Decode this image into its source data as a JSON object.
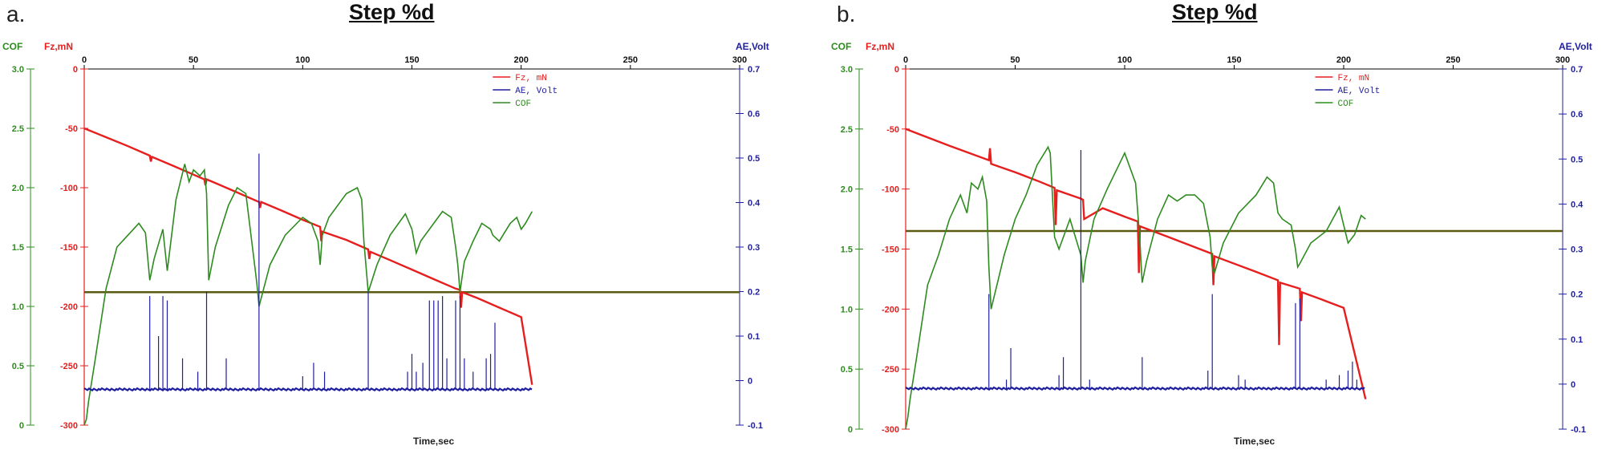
{
  "colors": {
    "fz": "#e61e1e",
    "ae": "#1f1f9e",
    "cof": "#2e8b1f",
    "hline": "#5a5a10"
  },
  "chart_data": [
    {
      "panel_label": "a.",
      "title": "Step %d",
      "type": "line",
      "xlabel": "Time,sec",
      "x_axis": {
        "range": [
          0,
          300
        ],
        "ticks": [
          0,
          50,
          100,
          150,
          200,
          250,
          300
        ]
      },
      "cof_axis": {
        "label": "COF",
        "range": [
          0,
          3.0
        ],
        "ticks": [
          0,
          0.5,
          1.0,
          1.5,
          2.0,
          2.5,
          3.0
        ],
        "tick_labels": [
          "0",
          "0.5",
          "1.0",
          "1.5",
          "2.0",
          "2.5",
          "3.0"
        ]
      },
      "fz_axis": {
        "label": "Fz,mN",
        "range": [
          -300,
          0
        ],
        "ticks": [
          -300,
          -250,
          -200,
          -150,
          -100,
          -50,
          0
        ],
        "tick_labels": [
          "-300",
          "-250",
          "-200",
          "-150",
          "-100",
          "-50",
          "0"
        ]
      },
      "ae_axis": {
        "label": "AE,Volt",
        "range": [
          -0.1,
          0.7
        ],
        "ticks": [
          -0.1,
          0,
          0.1,
          0.2,
          0.3,
          0.4,
          0.5,
          0.6,
          0.7
        ],
        "tick_labels": [
          "-0.1",
          "0",
          "0.1",
          "0.2",
          "0.3",
          "0.4",
          "0.5",
          "0.6",
          "0.7"
        ]
      },
      "legend": [
        "Fz, mN",
        "AE, Volt",
        "COF"
      ],
      "hline_cof": 1.12,
      "series": [
        {
          "key": "fz",
          "name": "Fz, mN",
          "axis": "fz",
          "x": [
            0,
            20,
            30,
            30.5,
            31,
            40,
            50,
            55,
            55.5,
            56,
            60,
            70,
            80,
            80.5,
            81,
            90,
            100,
            108,
            108.5,
            109,
            120,
            130,
            130.5,
            131,
            140,
            150,
            160,
            170,
            172,
            172.5,
            173,
            180,
            190,
            200,
            205
          ],
          "y": [
            -50,
            -65,
            -73,
            -78,
            -74,
            -81,
            -89,
            -93,
            -98,
            -93,
            -96,
            -104,
            -112,
            -117,
            -112,
            -119,
            -127,
            -133,
            -145,
            -137,
            -144,
            -152,
            -160,
            -154,
            -161,
            -169,
            -177,
            -185,
            -186,
            -201,
            -188,
            -193,
            -201,
            -209,
            -266
          ]
        },
        {
          "key": "cof",
          "name": "COF",
          "axis": "cof",
          "x": [
            0,
            1,
            2,
            5,
            10,
            15,
            20,
            25,
            28,
            30,
            32,
            36,
            38,
            42,
            46,
            48,
            50,
            53,
            55,
            56,
            57,
            60,
            66,
            70,
            74,
            78,
            79,
            80,
            85,
            92,
            100,
            104,
            107,
            108,
            109,
            112,
            120,
            125,
            127,
            128,
            130,
            134,
            140,
            147,
            150,
            152,
            154,
            160,
            164,
            168,
            170,
            171,
            172,
            173,
            174,
            178,
            182,
            186,
            187,
            190,
            195,
            198,
            200,
            202,
            205
          ],
          "y": [
            0,
            0.05,
            0.2,
            0.55,
            1.15,
            1.5,
            1.6,
            1.7,
            1.62,
            1.22,
            1.4,
            1.65,
            1.3,
            1.9,
            2.2,
            2.05,
            2.15,
            2.1,
            2.15,
            1.95,
            1.22,
            1.5,
            1.85,
            2.0,
            1.95,
            1.35,
            1.2,
            1.0,
            1.35,
            1.6,
            1.75,
            1.7,
            1.55,
            1.35,
            1.6,
            1.75,
            1.95,
            2.0,
            1.9,
            1.55,
            1.12,
            1.35,
            1.6,
            1.78,
            1.65,
            1.45,
            1.55,
            1.7,
            1.8,
            1.75,
            1.5,
            1.35,
            1.12,
            1.25,
            1.38,
            1.55,
            1.7,
            1.65,
            1.6,
            1.55,
            1.7,
            1.75,
            1.65,
            1.7,
            1.8
          ]
        },
        {
          "key": "ae",
          "name": "AE, Volt",
          "axis": "ae",
          "baseline": -0.02,
          "spikes": [
            [
              30,
              0.19
            ],
            [
              34,
              0.1
            ],
            [
              36,
              0.19
            ],
            [
              38,
              0.18
            ],
            [
              45,
              0.05
            ],
            [
              52,
              0.02
            ],
            [
              56,
              0.2
            ],
            [
              65,
              0.05
            ],
            [
              80,
              0.51
            ],
            [
              100,
              0.01
            ],
            [
              105,
              0.04
            ],
            [
              110,
              0.02
            ],
            [
              130,
              0.2
            ],
            [
              148,
              0.02
            ],
            [
              150,
              0.06
            ],
            [
              152,
              0.02
            ],
            [
              155,
              0.04
            ],
            [
              158,
              0.18
            ],
            [
              160,
              0.18
            ],
            [
              162,
              0.18
            ],
            [
              164,
              0.19
            ],
            [
              166,
              0.05
            ],
            [
              170,
              0.18
            ],
            [
              172,
              0.19
            ],
            [
              174,
              0.05
            ],
            [
              178,
              0.02
            ],
            [
              184,
              0.05
            ],
            [
              186,
              0.06
            ],
            [
              188,
              0.13
            ]
          ]
        }
      ]
    },
    {
      "panel_label": "b.",
      "title": "Step %d",
      "type": "line",
      "xlabel": "Time,sec",
      "x_axis": {
        "range": [
          0,
          300
        ],
        "ticks": [
          0,
          50,
          100,
          150,
          200,
          250,
          300
        ]
      },
      "cof_axis": {
        "label": "COF",
        "range": [
          0,
          3.0
        ],
        "ticks": [
          0,
          0.5,
          1.0,
          1.5,
          2.0,
          2.5,
          3.0
        ],
        "tick_labels": [
          "0",
          "0.5",
          "1.0",
          "1.5",
          "2.0",
          "2.5",
          "3.0"
        ]
      },
      "fz_axis": {
        "label": "Fz,mN",
        "range": [
          -300,
          0
        ],
        "ticks": [
          -300,
          -250,
          -200,
          -150,
          -100,
          -50,
          0
        ],
        "tick_labels": [
          "-300",
          "-250",
          "-200",
          "-150",
          "-100",
          "-50",
          "0"
        ]
      },
      "ae_axis": {
        "label": "AE,Volt",
        "range": [
          -0.1,
          0.7
        ],
        "ticks": [
          -0.1,
          0,
          0.1,
          0.2,
          0.3,
          0.4,
          0.5,
          0.6,
          0.7
        ],
        "tick_labels": [
          "-0.1",
          "0",
          "0.1",
          "0.2",
          "0.3",
          "0.4",
          "0.5",
          "0.6",
          "0.7"
        ]
      },
      "legend": [
        "Fz, mN",
        "AE, Volt",
        "COF"
      ],
      "hline_cof": 1.65,
      "series": [
        {
          "key": "fz",
          "name": "Fz, mN",
          "axis": "fz",
          "x": [
            0,
            20,
            38,
            38.5,
            39,
            50,
            60,
            68,
            68.5,
            69,
            80,
            81,
            81.5,
            90,
            100,
            106,
            106.5,
            107,
            120,
            140,
            140.5,
            141,
            160,
            170,
            170.5,
            171,
            180,
            180.5,
            181,
            190,
            200,
            210
          ],
          "y": [
            -50,
            -64,
            -76,
            -66,
            -79,
            -86,
            -93,
            -99,
            -130,
            -101,
            -108,
            -109,
            -125,
            -116,
            -123,
            -127,
            -170,
            -131,
            -140,
            -154,
            -180,
            -156,
            -169,
            -176,
            -230,
            -178,
            -183,
            -210,
            -186,
            -192,
            -199,
            -275
          ]
        },
        {
          "key": "cof",
          "name": "COF",
          "axis": "cof",
          "x": [
            0,
            1,
            2,
            5,
            10,
            15,
            20,
            25,
            28,
            30,
            33,
            35,
            37,
            38,
            39,
            45,
            50,
            55,
            60,
            65,
            66,
            68,
            70,
            75,
            80,
            81,
            82,
            86,
            92,
            100,
            105,
            107,
            108,
            110,
            115,
            120,
            124,
            128,
            132,
            136,
            139,
            140,
            141,
            145,
            152,
            160,
            165,
            168,
            170,
            172,
            176,
            178,
            179,
            180,
            185,
            192,
            198,
            200,
            202,
            205,
            208,
            210
          ],
          "y": [
            0,
            0.1,
            0.25,
            0.6,
            1.2,
            1.45,
            1.75,
            1.95,
            1.8,
            2.05,
            2.0,
            2.1,
            1.9,
            1.35,
            1.0,
            1.45,
            1.75,
            1.95,
            2.2,
            2.35,
            2.3,
            1.6,
            1.5,
            1.75,
            1.45,
            1.22,
            1.4,
            1.75,
            2.0,
            2.3,
            2.05,
            1.55,
            1.22,
            1.4,
            1.75,
            1.95,
            1.9,
            1.95,
            1.95,
            1.88,
            1.6,
            1.35,
            1.3,
            1.55,
            1.8,
            1.95,
            2.1,
            2.05,
            1.8,
            1.75,
            1.7,
            1.5,
            1.35,
            1.38,
            1.55,
            1.65,
            1.85,
            1.7,
            1.55,
            1.62,
            1.78,
            1.75
          ]
        },
        {
          "key": "ae",
          "name": "AE, Volt",
          "axis": "ae",
          "baseline": -0.01,
          "spikes": [
            [
              38,
              0.2
            ],
            [
              46,
              0.01
            ],
            [
              48,
              0.08
            ],
            [
              70,
              0.02
            ],
            [
              72,
              0.06
            ],
            [
              80,
              0.52
            ],
            [
              84,
              0.01
            ],
            [
              108,
              0.06
            ],
            [
              138,
              0.03
            ],
            [
              140,
              0.2
            ],
            [
              152,
              0.02
            ],
            [
              155,
              0.01
            ],
            [
              178,
              0.18
            ],
            [
              180,
              0.19
            ],
            [
              192,
              0.01
            ],
            [
              198,
              0.02
            ],
            [
              202,
              0.03
            ],
            [
              204,
              0.05
            ],
            [
              206,
              0.01
            ]
          ]
        }
      ]
    }
  ]
}
